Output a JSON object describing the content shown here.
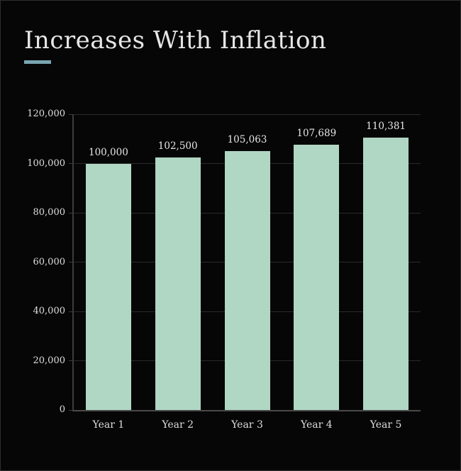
{
  "title": "Increases With Inflation",
  "accent_color": "#7aa5b0",
  "chart_data": {
    "type": "bar",
    "title": "Increases With Inflation",
    "categories": [
      "Year 1",
      "Year 2",
      "Year 3",
      "Year 4",
      "Year 5"
    ],
    "values": [
      100000,
      102500,
      105063,
      107689,
      110381
    ],
    "value_labels": [
      "100,000",
      "102,500",
      "105,063",
      "107,689",
      "110,381"
    ],
    "yticks": [
      0,
      20000,
      40000,
      60000,
      80000,
      100000,
      120000
    ],
    "ytick_labels": [
      "0",
      "20,000",
      "40,000",
      "60,000",
      "80,000",
      "100,000",
      "120,000"
    ],
    "ylim": [
      0,
      120000
    ],
    "xlabel": "",
    "ylabel": "",
    "grid": "horizontal",
    "legend": "none",
    "bar_color": "#b0d6c4",
    "background_color": "#060606",
    "grid_color": "#2a2a2a",
    "axis_color": "#4a4a4a",
    "text_color": "#e3e3e3"
  }
}
